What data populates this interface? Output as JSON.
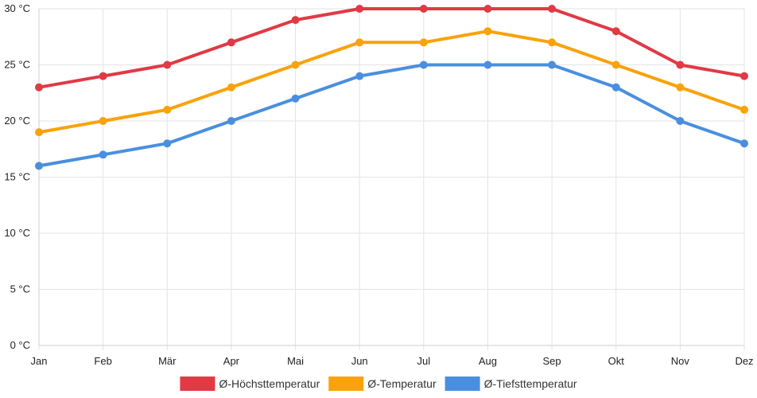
{
  "chart_data": {
    "type": "line",
    "categories": [
      "Jan",
      "Feb",
      "Mär",
      "Apr",
      "Mai",
      "Jun",
      "Jul",
      "Aug",
      "Sep",
      "Okt",
      "Nov",
      "Dez"
    ],
    "ylim": [
      0,
      30
    ],
    "ytick_labels": [
      "0 °C",
      "5 °C",
      "10 °C",
      "15 °C",
      "20 °C",
      "25 °C",
      "30 °C"
    ],
    "grid": true,
    "legend_position": "bottom",
    "series": [
      {
        "name": "Ø-Höchsttemperatur",
        "color": "#e03a45",
        "values": [
          23,
          24,
          25,
          27,
          29,
          30,
          30,
          30,
          30,
          28,
          25,
          24
        ]
      },
      {
        "name": "Ø-Temperatur",
        "color": "#f9a20b",
        "values": [
          19,
          20,
          21,
          23,
          25,
          27,
          27,
          28,
          27,
          25,
          23,
          21
        ]
      },
      {
        "name": "Ø-Tiefsttemperatur",
        "color": "#4a8fdf",
        "values": [
          16,
          17,
          18,
          20,
          22,
          24,
          25,
          25,
          25,
          23,
          20,
          18
        ]
      }
    ]
  }
}
